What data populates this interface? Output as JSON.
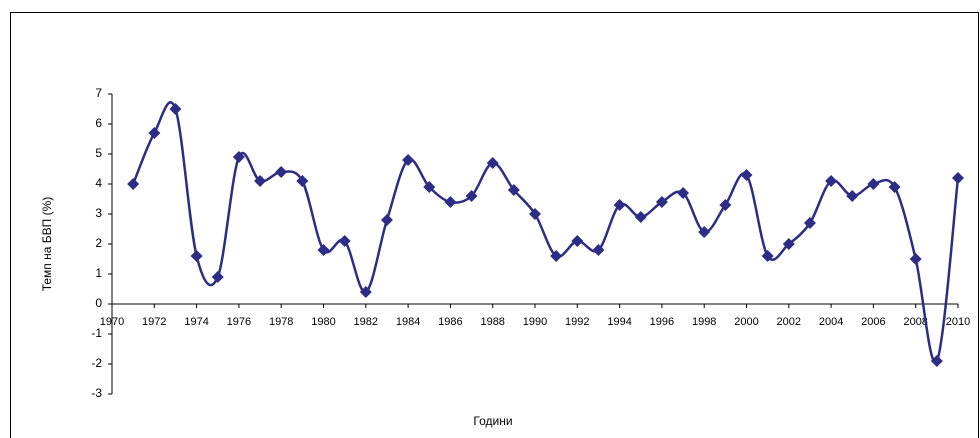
{
  "chart_data": {
    "type": "line",
    "x_label": "Години",
    "y_label": "Темп на БВП (%)",
    "x": [
      1971,
      1972,
      1973,
      1974,
      1975,
      1976,
      1977,
      1978,
      1979,
      1980,
      1981,
      1982,
      1983,
      1984,
      1985,
      1986,
      1987,
      1988,
      1989,
      1990,
      1991,
      1992,
      1993,
      1994,
      1995,
      1996,
      1997,
      1998,
      1999,
      2000,
      2001,
      2002,
      2003,
      2004,
      2005,
      2006,
      2007,
      2008,
      2009,
      2010
    ],
    "values": [
      4.0,
      5.7,
      6.5,
      1.6,
      0.9,
      4.9,
      4.1,
      4.4,
      4.1,
      1.8,
      2.1,
      0.4,
      2.8,
      4.8,
      3.9,
      3.4,
      3.6,
      4.7,
      3.8,
      3.0,
      1.6,
      2.1,
      1.8,
      3.3,
      2.9,
      3.4,
      3.7,
      2.4,
      3.3,
      4.3,
      1.6,
      2.0,
      2.7,
      4.1,
      3.6,
      4.0,
      3.9,
      1.5,
      -1.9,
      4.2
    ],
    "color": "#2d2d86",
    "xlim": [
      1970,
      2010
    ],
    "xticks": [
      1970,
      1972,
      1974,
      1976,
      1978,
      1980,
      1982,
      1984,
      1986,
      1988,
      1990,
      1992,
      1994,
      1996,
      1998,
      2000,
      2002,
      2004,
      2006,
      2008,
      2010
    ],
    "ylim": [
      -3,
      7
    ],
    "yticks": [
      -3,
      -2,
      -1,
      0,
      1,
      2,
      3,
      4,
      5,
      6,
      7
    ]
  }
}
